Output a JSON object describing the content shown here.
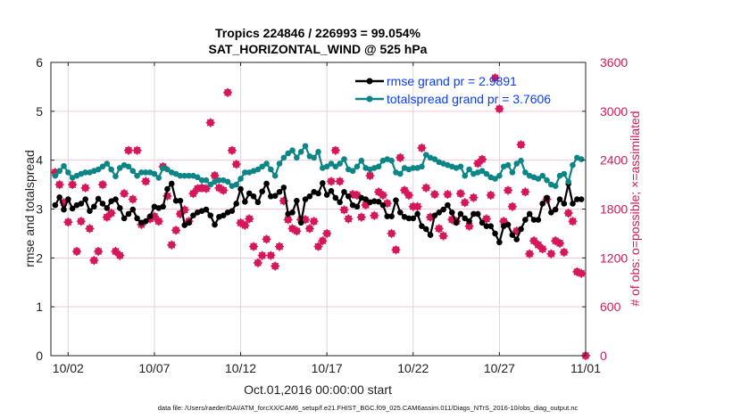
{
  "chart_data": {
    "type": "line",
    "title": [
      "Tropics 224846 / 226993 = 99.054%",
      "SAT_HORIZONTAL_WIND @ 525 hPa"
    ],
    "xlabel": "Oct.01,2016 00:00:00 start",
    "ylabel_left": "rmse and totalspread",
    "ylabel_right": "# of obs: o=possible; ×=assimilated",
    "footer": "data file: /Users/raeder/DAI/ATM_forcXX/CAM6_setup/f.e21.FHIST_BGC.f09_025.CAM6assim.011/Diags_NTrS_2016-10/obs_diag_output.nc",
    "x_units": "days since Oct.01,2016 00:00:00",
    "x_start": 0.25,
    "x_step": 0.25,
    "xlim": [
      0,
      31
    ],
    "ylim_left": [
      0,
      6
    ],
    "ylim_right": [
      0,
      3600
    ],
    "xticks": [
      {
        "value": 1,
        "label": "10/02"
      },
      {
        "value": 6,
        "label": "10/07"
      },
      {
        "value": 11,
        "label": "10/12"
      },
      {
        "value": 16,
        "label": "10/17"
      },
      {
        "value": 21,
        "label": "10/22"
      },
      {
        "value": 26,
        "label": "10/27"
      },
      {
        "value": 31,
        "label": "11/01"
      }
    ],
    "yticks_left": [
      "0",
      "1",
      "2",
      "3",
      "4",
      "5",
      "6"
    ],
    "yticks_right": [
      "0",
      "600",
      "1200",
      "1800",
      "2400",
      "3000",
      "3600"
    ],
    "grid": true,
    "legend_placement": "top-right",
    "colors": {
      "rmse": "#000000",
      "spread": "#0b8585",
      "obs": "#d6175a",
      "legend_text": "#0a3cff",
      "grid_h": "#f2c6d4",
      "grid_v": "#d8d8d8"
    },
    "series": [
      {
        "name": "rmse",
        "legend": "rmse grand pr = 2.9891",
        "axis": "left",
        "values": [
          3.08,
          3.24,
          2.99,
          3.2,
          3.01,
          3.08,
          3.11,
          3.2,
          2.96,
          3.05,
          3.21,
          3.11,
          3.02,
          3.16,
          3.2,
          3.02,
          2.81,
          2.9,
          2.99,
          2.81,
          2.72,
          2.75,
          2.85,
          3.05,
          3.02,
          3.05,
          3.41,
          3.52,
          3.17,
          3.17,
          2.67,
          2.72,
          2.87,
          2.93,
          2.96,
          2.99,
          2.87,
          2.68,
          2.84,
          2.87,
          2.93,
          2.96,
          3.11,
          3.41,
          3.15,
          3.32,
          3.26,
          3.14,
          3.36,
          3.52,
          3.26,
          3.27,
          3.35,
          3.44,
          2.9,
          2.93,
          3.17,
          2.72,
          3.2,
          3.26,
          3.35,
          3.32,
          3.53,
          3.29,
          3.37,
          3.23,
          3.14,
          3.35,
          3.26,
          3.08,
          3.05,
          3.23,
          3.2,
          3.14,
          3.16,
          3.15,
          3.08,
          2.85,
          2.85,
          3.18,
          2.93,
          2.84,
          2.81,
          2.81,
          2.9,
          2.65,
          2.59,
          2.47,
          2.87,
          2.93,
          2.99,
          3.08,
          2.93,
          2.72,
          2.9,
          2.81,
          2.75,
          2.9,
          2.9,
          2.72,
          2.65,
          2.65,
          2.5,
          2.32,
          2.65,
          2.68,
          2.47,
          2.38,
          2.59,
          2.78,
          2.9,
          2.78,
          2.78,
          3.11,
          3.23,
          2.93,
          2.99,
          3.2,
          3.11,
          3.52,
          3.11,
          3.2,
          3.2,
          null
        ]
      },
      {
        "name": "totalspread",
        "legend": "totalspread grand pr = 3.7606",
        "axis": "left",
        "values": [
          3.68,
          3.78,
          3.88,
          3.75,
          3.64,
          3.68,
          3.72,
          3.75,
          3.75,
          3.78,
          3.81,
          3.87,
          3.93,
          3.81,
          3.67,
          3.84,
          3.9,
          3.87,
          3.78,
          3.68,
          3.75,
          3.75,
          3.75,
          3.72,
          3.64,
          3.84,
          3.81,
          3.75,
          3.72,
          3.68,
          3.68,
          3.68,
          3.68,
          3.65,
          3.59,
          3.59,
          3.5,
          3.56,
          3.59,
          3.59,
          3.56,
          3.47,
          3.5,
          3.62,
          3.75,
          3.75,
          3.78,
          3.81,
          3.87,
          3.93,
          3.81,
          3.68,
          3.93,
          4.05,
          4.14,
          4.2,
          4.05,
          4.17,
          4.29,
          4.08,
          4.05,
          4.17,
          3.84,
          3.87,
          3.93,
          3.87,
          3.93,
          4.02,
          3.81,
          3.78,
          3.87,
          3.99,
          3.84,
          3.81,
          3.84,
          3.87,
          3.99,
          4.02,
          3.99,
          3.75,
          3.72,
          3.84,
          3.81,
          3.84,
          3.84,
          3.87,
          4.11,
          4.05,
          4.02,
          3.96,
          3.93,
          3.9,
          3.87,
          3.84,
          3.87,
          3.68,
          3.81,
          3.72,
          3.75,
          3.78,
          3.72,
          3.65,
          3.62,
          3.68,
          3.87,
          3.9,
          3.75,
          3.93,
          3.99,
          3.75,
          3.68,
          3.65,
          3.62,
          3.68,
          3.59,
          3.5,
          3.47,
          3.68,
          3.72,
          3.56,
          3.9,
          4.05,
          4.02,
          null
        ]
      },
      {
        "name": "obs_count",
        "legend": "",
        "axis": "right",
        "values": [
          2250,
          2100,
          1880,
          1640,
          2100,
          1280,
          1650,
          2060,
          1560,
          1170,
          1280,
          2100,
          1700,
          1750,
          1280,
          1230,
          1990,
          2520,
          1920,
          2520,
          1610,
          2140,
          1680,
          1710,
          1650,
          2320,
          1960,
          1360,
          1540,
          1740,
          1790,
          1650,
          1990,
          2050,
          2060,
          2050,
          2860,
          2210,
          2060,
          2030,
          3230,
          2520,
          2350,
          1630,
          1600,
          1680,
          1340,
          1140,
          1230,
          1430,
          1230,
          1100,
          1340,
          1900,
          1670,
          1560,
          1530,
          1670,
          1670,
          1560,
          1650,
          1340,
          1410,
          1500,
          2140,
          2520,
          2140,
          1790,
          1680,
          1980,
          1970,
          1700,
          1850,
          2210,
          1720,
          2010,
          1970,
          1870,
          1500,
          1300,
          2430,
          2030,
          1970,
          1830,
          1830,
          2550,
          2060,
          1700,
          1980,
          1560,
          1470,
          1980,
          1670,
          1650,
          1990,
          1880,
          1590,
          1940,
          2360,
          2410,
          1680,
          1970,
          3410,
          3030,
          1650,
          2030,
          1830,
          1530,
          2590,
          2010,
          1250,
          1410,
          1360,
          1310,
          1920,
          1250,
          1410,
          1380,
          1270,
          1750,
          1650,
          1030,
          1010,
          0
        ]
      }
    ]
  }
}
